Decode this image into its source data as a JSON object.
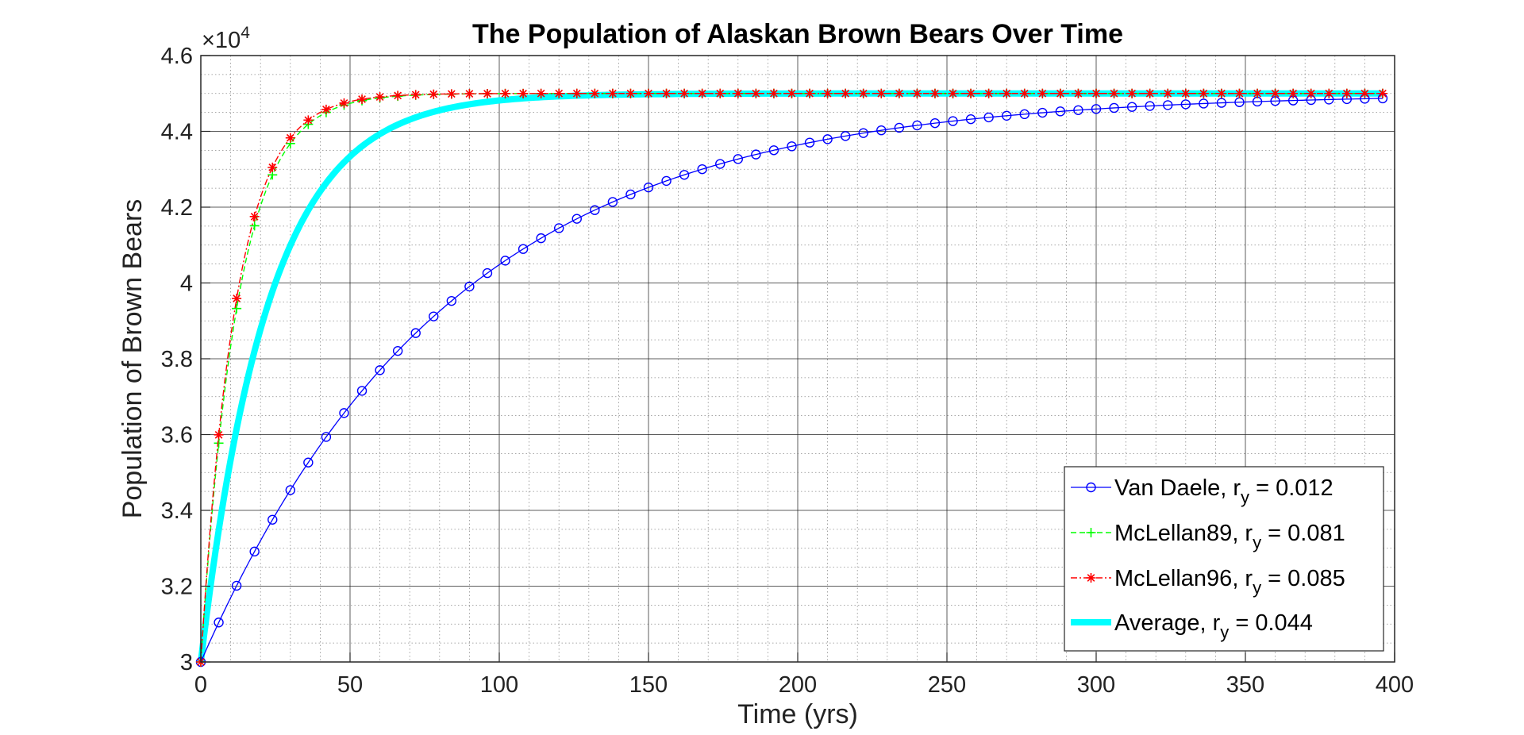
{
  "chart_data": {
    "type": "line",
    "title": "The Population of Alaskan Brown Bears Over Time",
    "xlabel": "Time (yrs)",
    "ylabel": "Population of Brown Bears",
    "y_exponent_label": "×10",
    "y_exponent": "4",
    "xlim": [
      0,
      400
    ],
    "ylim": [
      3,
      4.6
    ],
    "x_ticks": [
      0,
      50,
      100,
      150,
      200,
      250,
      300,
      350,
      400
    ],
    "y_ticks": [
      3,
      3.2,
      3.4,
      3.6,
      3.8,
      4,
      4.2,
      4.4,
      4.6
    ],
    "y_tick_labels": [
      "3",
      "3.2",
      "3.4",
      "3.6",
      "3.8",
      "4",
      "4.2",
      "4.4",
      "4.6"
    ],
    "grid": true,
    "minor_grid": true,
    "legend_position": "bottom-right",
    "model": {
      "P0": 3.0,
      "K": 4.5,
      "t_max": 396
    },
    "series": [
      {
        "name": "Van Daele",
        "r_label": "= 0.012",
        "r": 0.012,
        "marker_step": 6,
        "color": "#0000ff",
        "marker": "circle",
        "style": "solid"
      },
      {
        "name": "McLellan89",
        "r_label": "= 0.081",
        "r": 0.081,
        "marker_step": 6,
        "color": "#00ff00",
        "marker": "plus",
        "style": "dashed"
      },
      {
        "name": "McLellan96",
        "r_label": "= 0.085",
        "r": 0.085,
        "marker_step": 6,
        "color": "#ff0000",
        "marker": "star",
        "style": "dashdot"
      },
      {
        "name": "Average",
        "r_label": "= 0.044",
        "r": 0.044,
        "marker_step": 0,
        "color": "#00ffff",
        "marker": "none",
        "style": "thick"
      }
    ]
  }
}
